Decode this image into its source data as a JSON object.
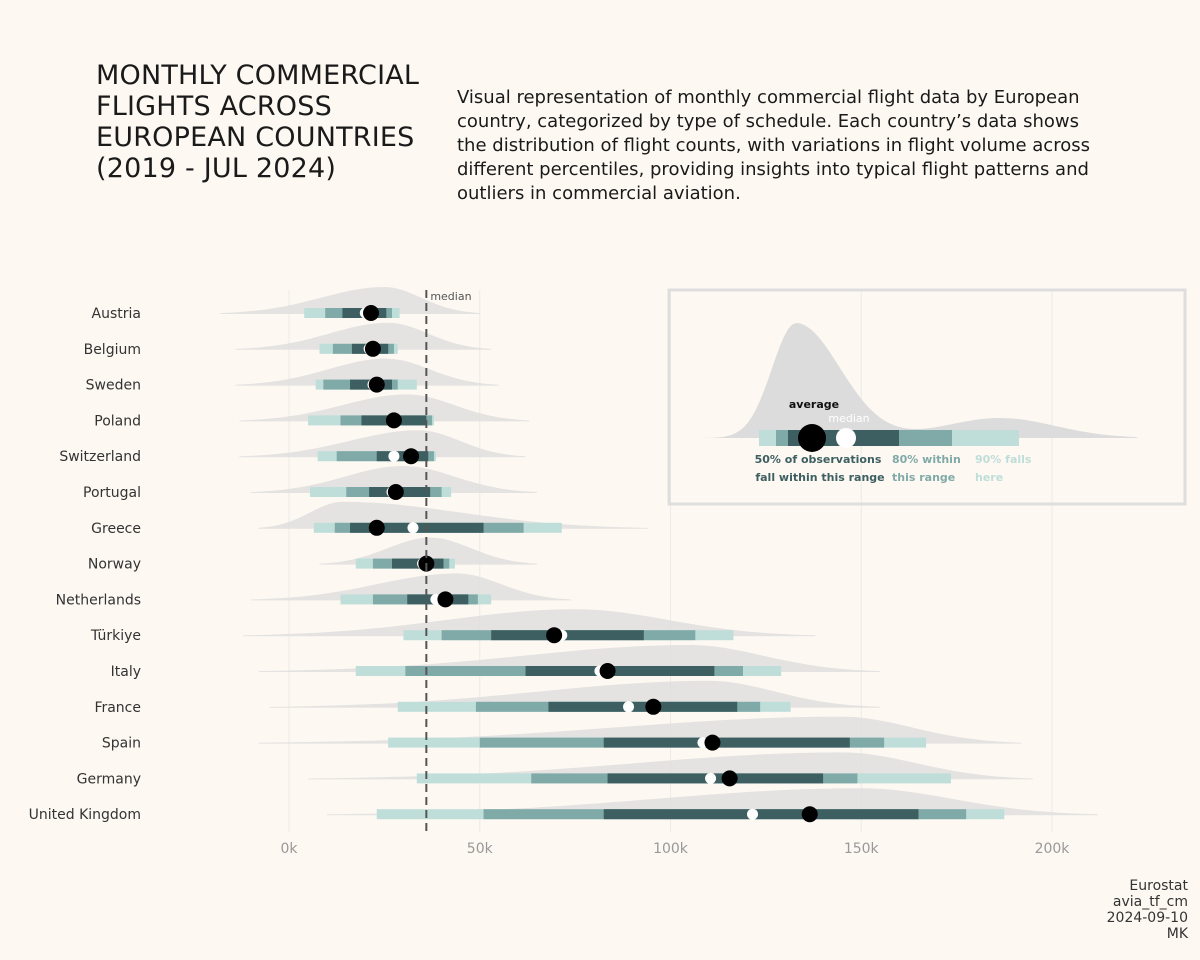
{
  "title": "MONTHLY COMMERCIAL FLIGHTS ACROSS EUROPEAN COUNTRIES (2019 - JUL 2024)",
  "subtitle": "Visual representation of monthly commercial flight data by European country, categorized by type of schedule. Each country’s data shows the distribution of flight counts, with variations in flight volume across different percentiles, providing insights into typical flight patterns and outliers in commercial aviation.",
  "caption": [
    "Eurostat",
    "avia_tf_cm",
    "2024-09-10",
    "MK"
  ],
  "colors": {
    "background": "#fdf8f2",
    "density": "#dcdcdc",
    "band90": "#bfdeda",
    "band80": "#80aaa8",
    "band50": "#3d5f61",
    "mean_point": "#000000",
    "median_point": "#ffffff",
    "median_line": "#555555"
  },
  "legend": {
    "average_label": "average",
    "median_label": "median",
    "band50_label": [
      "50% of observations",
      "fall within this range"
    ],
    "band80_label": [
      "80% within",
      "this range"
    ],
    "band90_label": [
      "90% falls",
      "here"
    ]
  },
  "chart_data": {
    "type": "interval",
    "xlim": [
      0,
      220000
    ],
    "x_ticks": [
      0,
      50000,
      100000,
      150000,
      200000
    ],
    "x_tick_labels": [
      "0k",
      "50k",
      "100k",
      "150k",
      "200k"
    ],
    "overall_median": 36000,
    "median_line_label": "median",
    "countries": [
      {
        "name": "Austria",
        "mean": 21500,
        "median": 20000,
        "p5": 4000,
        "p10": 9500,
        "p25": 14000,
        "p75": 25500,
        "p90": 27000,
        "p95": 29000,
        "min": -18000,
        "max": 50000,
        "mode": 25000
      },
      {
        "name": "Belgium",
        "mean": 22000,
        "median": 21000,
        "p5": 8000,
        "p10": 11500,
        "p25": 16500,
        "p75": 26000,
        "p90": 27500,
        "p95": 28500,
        "min": -14000,
        "max": 53000,
        "mode": 26000
      },
      {
        "name": "Sweden",
        "mean": 23000,
        "median": 22000,
        "p5": 7000,
        "p10": 9000,
        "p25": 16000,
        "p75": 27000,
        "p90": 28500,
        "p95": 33500,
        "min": -14000,
        "max": 55000,
        "mode": 25500
      },
      {
        "name": "Poland",
        "mean": 27500,
        "median": 27000,
        "p5": 5000,
        "p10": 13500,
        "p25": 19000,
        "p75": 36000,
        "p90": 37500,
        "p95": 38000,
        "min": -13000,
        "max": 63000,
        "mode": 31000
      },
      {
        "name": "Switzerland",
        "mean": 32000,
        "median": 27500,
        "p5": 7500,
        "p10": 12500,
        "p25": 23000,
        "p75": 36500,
        "p90": 38000,
        "p95": 38500,
        "min": -13000,
        "max": 62000,
        "mode": 34000
      },
      {
        "name": "Portugal",
        "mean": 28000,
        "median": 27000,
        "p5": 5500,
        "p10": 15000,
        "p25": 21000,
        "p75": 37000,
        "p90": 40000,
        "p95": 42500,
        "min": -10000,
        "max": 65000,
        "mode": 30000
      },
      {
        "name": "Greece",
        "mean": 23000,
        "median": 32500,
        "p5": 6500,
        "p10": 12000,
        "p25": 16000,
        "p75": 51000,
        "p90": 61500,
        "p95": 71500,
        "min": -8000,
        "max": 94000,
        "mode": 14000
      },
      {
        "name": "Norway",
        "mean": 36000,
        "median": 35000,
        "p5": 17500,
        "p10": 22000,
        "p25": 27000,
        "p75": 40500,
        "p90": 42000,
        "p95": 43500,
        "min": 8000,
        "max": 65000,
        "mode": 37000
      },
      {
        "name": "Netherlands",
        "mean": 41000,
        "median": 38500,
        "p5": 13500,
        "p10": 22000,
        "p25": 31000,
        "p75": 47000,
        "p90": 49500,
        "p95": 53000,
        "min": -10000,
        "max": 74000,
        "mode": 44000
      },
      {
        "name": "Türkiye",
        "mean": 69500,
        "median": 71500,
        "p5": 30000,
        "p10": 40000,
        "p25": 53000,
        "p75": 93000,
        "p90": 106500,
        "p95": 116500,
        "min": -12000,
        "max": 138000,
        "mode": 75000
      },
      {
        "name": "Italy",
        "mean": 83500,
        "median": 81500,
        "p5": 17500,
        "p10": 30500,
        "p25": 62000,
        "p75": 111500,
        "p90": 119000,
        "p95": 129000,
        "min": -8000,
        "max": 155000,
        "mode": 105000
      },
      {
        "name": "France",
        "mean": 95500,
        "median": 89000,
        "p5": 28500,
        "p10": 49000,
        "p25": 68000,
        "p75": 117500,
        "p90": 123500,
        "p95": 131500,
        "min": -5000,
        "max": 155000,
        "mode": 110000
      },
      {
        "name": "Spain",
        "mean": 111000,
        "median": 108500,
        "p5": 26000,
        "p10": 50000,
        "p25": 82500,
        "p75": 147000,
        "p90": 156000,
        "p95": 167000,
        "min": -8000,
        "max": 192000,
        "mode": 145000
      },
      {
        "name": "Germany",
        "mean": 115500,
        "median": 110500,
        "p5": 33500,
        "p10": 63500,
        "p25": 83500,
        "p75": 140000,
        "p90": 149000,
        "p95": 173500,
        "min": 5000,
        "max": 195000,
        "mode": 145000
      },
      {
        "name": "United Kingdom",
        "mean": 136500,
        "median": 121500,
        "p5": 23000,
        "p10": 51000,
        "p25": 82500,
        "p75": 165000,
        "p90": 177500,
        "p95": 187500,
        "min": 10000,
        "max": 212000,
        "mode": 150000
      }
    ]
  }
}
